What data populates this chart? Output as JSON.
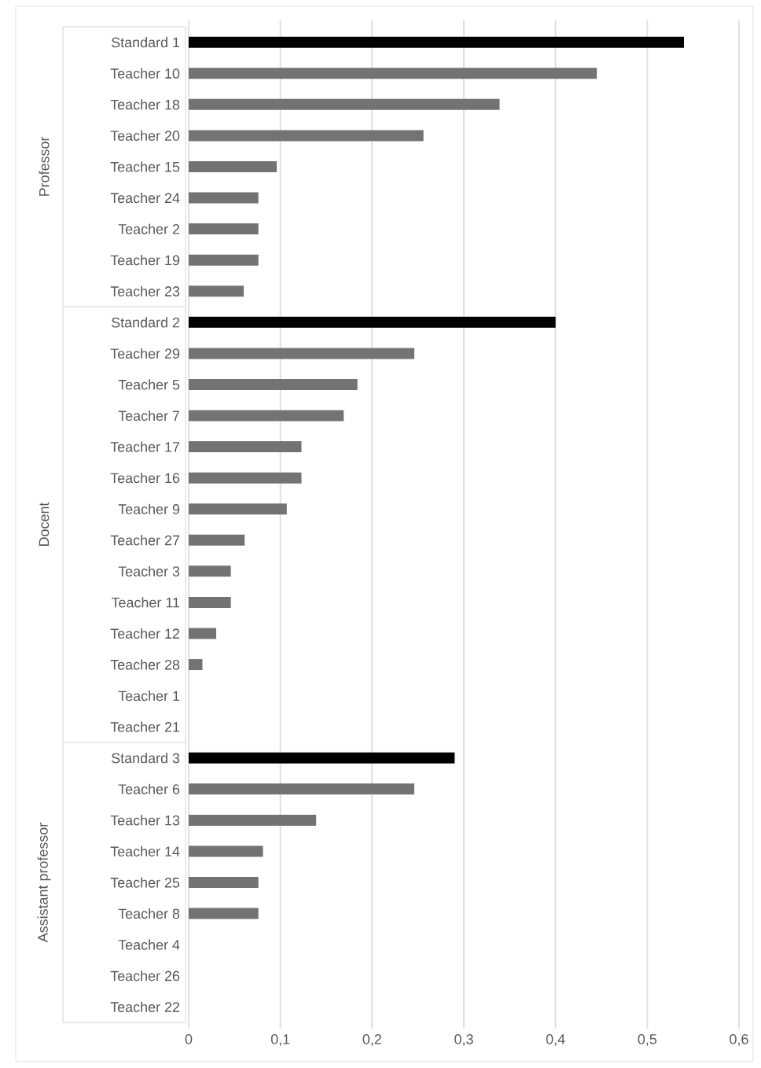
{
  "chart_data": {
    "type": "bar",
    "orientation": "horizontal",
    "categories": [
      "Standard 1",
      "Teacher 10",
      "Teacher 18",
      "Teacher 20",
      "Teacher 15",
      "Teacher 24",
      "Teacher 2",
      "Teacher 19",
      "Teacher 23",
      "Standard 2",
      "Teacher 29",
      "Teacher 5",
      "Teacher 7",
      "Teacher 17",
      "Teacher 16",
      "Teacher 9",
      "Teacher 27",
      "Teacher 3",
      "Teacher 11",
      "Teacher 12",
      "Teacher 28",
      "Teacher 1",
      "Teacher 21",
      "Standard 3",
      "Teacher 6",
      "Teacher 13",
      "Teacher 14",
      "Teacher 25",
      "Teacher 8",
      "Teacher 4",
      "Teacher 26",
      "Teacher 22"
    ],
    "series": [
      {
        "color": "#000000",
        "values": [
          0.54,
          null,
          null,
          null,
          null,
          null,
          null,
          null,
          null,
          0.4,
          null,
          null,
          null,
          null,
          null,
          null,
          null,
          null,
          null,
          null,
          null,
          null,
          null,
          0.29,
          null,
          null,
          null,
          null,
          null,
          null,
          null,
          null
        ]
      },
      {
        "color": "#737373",
        "values": [
          null,
          0.445,
          0.339,
          0.256,
          0.096,
          0.076,
          0.076,
          0.076,
          0.06,
          null,
          0.246,
          0.184,
          0.169,
          0.123,
          0.123,
          0.107,
          0.061,
          0.046,
          0.046,
          0.03,
          0.015,
          0,
          0,
          null,
          0.246,
          0.139,
          0.081,
          0.076,
          0.076,
          0,
          0,
          0
        ]
      }
    ],
    "annotations": [
      "Professor",
      "Docent",
      "Assistant professor"
    ],
    "xlim": [
      0,
      0.6
    ],
    "xticks": [
      0,
      {
        "value": 0.1,
        "label": "0,1"
      },
      {
        "value": 0.2,
        "label": "0,2"
      },
      {
        "value": 0.3,
        "label": "0,3"
      },
      {
        "value": 0.4,
        "label": "0,4"
      },
      {
        "value": 0.5,
        "label": "0,5"
      },
      {
        "value": 0.6,
        "label": "0,6"
      }
    ],
    "grid": "x"
  }
}
